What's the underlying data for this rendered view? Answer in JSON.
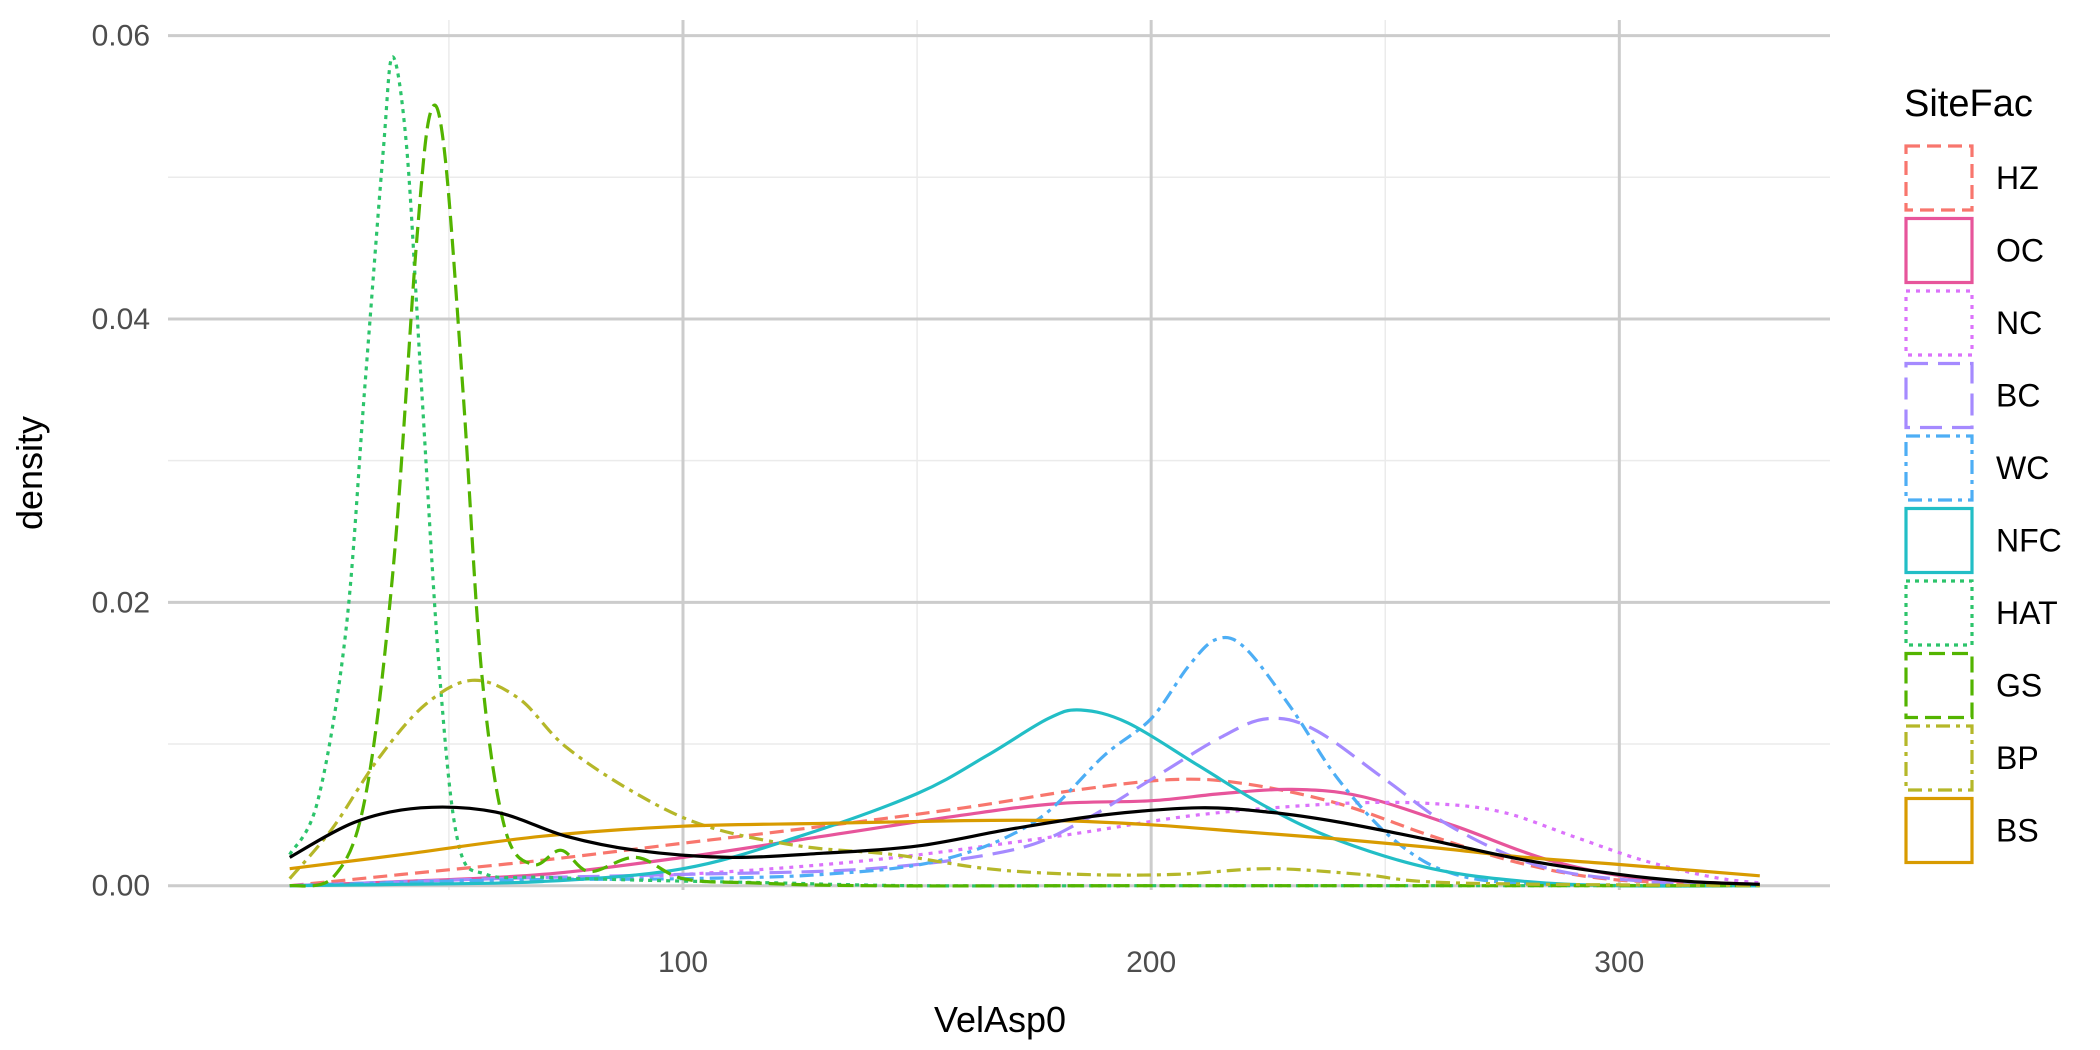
{
  "chart_data": {
    "type": "line",
    "title": "",
    "xlabel": "VelAsp0",
    "ylabel": "density",
    "xlim": [
      -10,
      345
    ],
    "ylim": [
      -0.0003,
      0.0611
    ],
    "x_ticks": [
      100,
      200,
      300
    ],
    "y_ticks": [
      0.0,
      0.02,
      0.04,
      0.06
    ],
    "x_tick_labels": [
      "100",
      "200",
      "300"
    ],
    "y_tick_labels": [
      "0.00",
      "0.02",
      "0.04",
      "0.06"
    ],
    "grid": true,
    "legend_title": "SiteFac",
    "legend_position": "right",
    "overall": {
      "color": "#000000",
      "points": [
        [
          16,
          0.002
        ],
        [
          30,
          0.0045
        ],
        [
          44,
          0.0055
        ],
        [
          60,
          0.0052
        ],
        [
          75,
          0.0035
        ],
        [
          90,
          0.0025
        ],
        [
          110,
          0.002
        ],
        [
          130,
          0.0023
        ],
        [
          150,
          0.0028
        ],
        [
          170,
          0.004
        ],
        [
          190,
          0.005
        ],
        [
          210,
          0.0055
        ],
        [
          225,
          0.0052
        ],
        [
          240,
          0.0045
        ],
        [
          260,
          0.0032
        ],
        [
          280,
          0.0018
        ],
        [
          300,
          0.0008
        ],
        [
          315,
          0.0003
        ],
        [
          330,
          0.0001
        ]
      ]
    },
    "series": [
      {
        "name": "HZ",
        "color": "#F8766D",
        "dash": "14,7",
        "points": [
          [
            16,
            0
          ],
          [
            40,
            0.0008
          ],
          [
            70,
            0.0018
          ],
          [
            100,
            0.003
          ],
          [
            130,
            0.0042
          ],
          [
            160,
            0.0055
          ],
          [
            185,
            0.0068
          ],
          [
            205,
            0.0075
          ],
          [
            220,
            0.0072
          ],
          [
            240,
            0.0058
          ],
          [
            260,
            0.0035
          ],
          [
            280,
            0.0015
          ],
          [
            300,
            0.0004
          ],
          [
            330,
            0.0001
          ]
        ]
      },
      {
        "name": "OC",
        "color": "#E7559B",
        "dash": "",
        "points": [
          [
            16,
            0
          ],
          [
            40,
            0.0003
          ],
          [
            70,
            0.0008
          ],
          [
            100,
            0.002
          ],
          [
            130,
            0.0035
          ],
          [
            160,
            0.005
          ],
          [
            180,
            0.0058
          ],
          [
            200,
            0.006
          ],
          [
            215,
            0.0065
          ],
          [
            230,
            0.0068
          ],
          [
            245,
            0.0063
          ],
          [
            265,
            0.0042
          ],
          [
            285,
            0.0018
          ],
          [
            305,
            0.0005
          ],
          [
            330,
            0.0001
          ]
        ]
      },
      {
        "name": "NC",
        "color": "#DB72FB",
        "dash": "4,6",
        "points": [
          [
            16,
            0
          ],
          [
            60,
            0.0003
          ],
          [
            100,
            0.0008
          ],
          [
            140,
            0.0018
          ],
          [
            180,
            0.0035
          ],
          [
            210,
            0.005
          ],
          [
            240,
            0.0058
          ],
          [
            260,
            0.0058
          ],
          [
            275,
            0.0052
          ],
          [
            290,
            0.0035
          ],
          [
            305,
            0.0018
          ],
          [
            320,
            0.0006
          ],
          [
            330,
            0.0002
          ]
        ]
      },
      {
        "name": "BC",
        "color": "#A58AFF",
        "dash": "22,10",
        "points": [
          [
            16,
            0
          ],
          [
            60,
            0.0005
          ],
          [
            100,
            0.0008
          ],
          [
            140,
            0.0012
          ],
          [
            170,
            0.0025
          ],
          [
            185,
            0.0045
          ],
          [
            200,
            0.0075
          ],
          [
            215,
            0.0105
          ],
          [
            225,
            0.0118
          ],
          [
            235,
            0.011
          ],
          [
            250,
            0.0075
          ],
          [
            265,
            0.004
          ],
          [
            285,
            0.0012
          ],
          [
            310,
            0.0002
          ],
          [
            330,
            0
          ]
        ]
      },
      {
        "name": "WC",
        "color": "#4DAEF5",
        "dash": "14,6,4,6",
        "points": [
          [
            16,
            0
          ],
          [
            60,
            0.0004
          ],
          [
            100,
            0.0005
          ],
          [
            130,
            0.0008
          ],
          [
            155,
            0.0018
          ],
          [
            175,
            0.0045
          ],
          [
            190,
            0.0092
          ],
          [
            200,
            0.0118
          ],
          [
            208,
            0.0155
          ],
          [
            214,
            0.0174
          ],
          [
            220,
            0.0168
          ],
          [
            230,
            0.0125
          ],
          [
            240,
            0.0075
          ],
          [
            252,
            0.0032
          ],
          [
            265,
            0.0008
          ],
          [
            285,
            0.0001
          ],
          [
            330,
            0
          ]
        ]
      },
      {
        "name": "NFC",
        "color": "#22BEC6",
        "dash": "",
        "points": [
          [
            16,
            0
          ],
          [
            40,
            0.0001
          ],
          [
            70,
            0.0003
          ],
          [
            100,
            0.0012
          ],
          [
            125,
            0.0035
          ],
          [
            150,
            0.0065
          ],
          [
            165,
            0.0092
          ],
          [
            178,
            0.0118
          ],
          [
            185,
            0.0124
          ],
          [
            195,
            0.0115
          ],
          [
            210,
            0.0085
          ],
          [
            225,
            0.0055
          ],
          [
            240,
            0.0032
          ],
          [
            260,
            0.0012
          ],
          [
            280,
            0.0003
          ],
          [
            300,
            0
          ],
          [
            330,
            0
          ]
        ]
      },
      {
        "name": "HAT",
        "color": "#2CC46B",
        "dash": "4,5",
        "points": [
          [
            16,
            0.0022
          ],
          [
            22,
            0.006
          ],
          [
            28,
            0.018
          ],
          [
            32,
            0.035
          ],
          [
            36,
            0.052
          ],
          [
            38,
            0.0585
          ],
          [
            41,
            0.052
          ],
          [
            44,
            0.036
          ],
          [
            48,
            0.015
          ],
          [
            52,
            0.003
          ],
          [
            58,
            0.0008
          ],
          [
            70,
            0.0006
          ],
          [
            90,
            0.0004
          ],
          [
            120,
            0.0002
          ],
          [
            150,
            0
          ],
          [
            200,
            0
          ],
          [
            250,
            0
          ],
          [
            330,
            0
          ]
        ]
      },
      {
        "name": "GS",
        "color": "#53B400",
        "dash": "16,7",
        "points": [
          [
            16,
            0
          ],
          [
            25,
            0.0005
          ],
          [
            32,
            0.006
          ],
          [
            38,
            0.022
          ],
          [
            43,
            0.045
          ],
          [
            46,
            0.0545
          ],
          [
            49,
            0.052
          ],
          [
            53,
            0.035
          ],
          [
            57,
            0.015
          ],
          [
            62,
            0.004
          ],
          [
            68,
            0.0015
          ],
          [
            74,
            0.0025
          ],
          [
            80,
            0.001
          ],
          [
            90,
            0.002
          ],
          [
            100,
            0.0005
          ],
          [
            115,
            0.0002
          ],
          [
            140,
            0
          ],
          [
            200,
            0
          ],
          [
            330,
            0
          ]
        ]
      },
      {
        "name": "BP",
        "color": "#B5B729",
        "dash": "14,6,4,6",
        "points": [
          [
            16,
            0.0005
          ],
          [
            25,
            0.004
          ],
          [
            35,
            0.009
          ],
          [
            45,
            0.0128
          ],
          [
            55,
            0.0145
          ],
          [
            65,
            0.0132
          ],
          [
            75,
            0.0098
          ],
          [
            90,
            0.0065
          ],
          [
            105,
            0.0042
          ],
          [
            125,
            0.0028
          ],
          [
            145,
            0.0022
          ],
          [
            165,
            0.0012
          ],
          [
            185,
            0.0008
          ],
          [
            205,
            0.0008
          ],
          [
            225,
            0.0012
          ],
          [
            245,
            0.0008
          ],
          [
            265,
            0.0002
          ],
          [
            330,
            0
          ]
        ]
      },
      {
        "name": "BS",
        "color": "#D89B00",
        "dash": "",
        "points": [
          [
            16,
            0.0012
          ],
          [
            40,
            0.0022
          ],
          [
            70,
            0.0035
          ],
          [
            100,
            0.0042
          ],
          [
            130,
            0.0044
          ],
          [
            160,
            0.0046
          ],
          [
            180,
            0.0046
          ],
          [
            200,
            0.0043
          ],
          [
            220,
            0.0038
          ],
          [
            240,
            0.0033
          ],
          [
            260,
            0.0027
          ],
          [
            280,
            0.002
          ],
          [
            300,
            0.0015
          ],
          [
            330,
            0.0007
          ]
        ]
      }
    ]
  }
}
